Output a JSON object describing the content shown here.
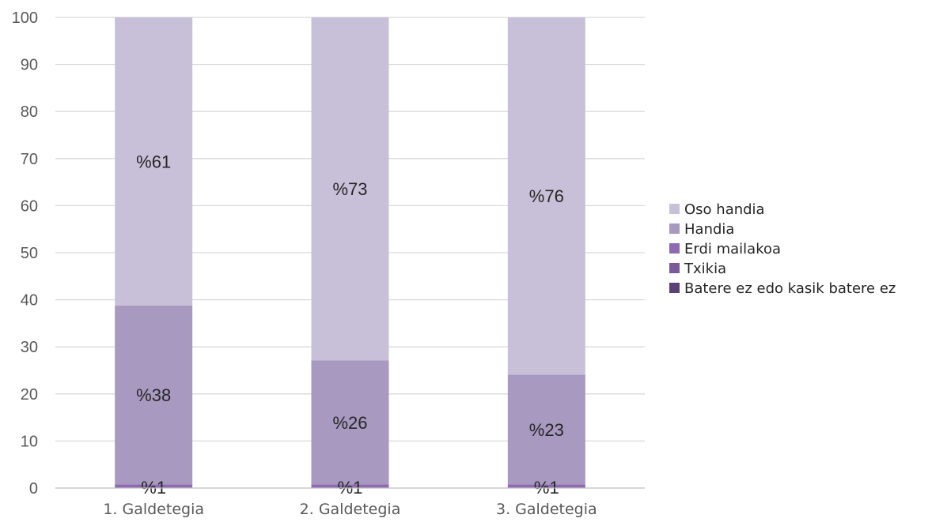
{
  "chart_data": {
    "type": "bar",
    "stacked": true,
    "categories": [
      "1. Galdetegia",
      "2. Galdetegia",
      "3. Galdetegia"
    ],
    "ylim": [
      0,
      100
    ],
    "yticks": [
      0,
      10,
      20,
      30,
      40,
      50,
      60,
      70,
      80,
      90,
      100
    ],
    "grid": true,
    "legend_position": "right",
    "series": [
      {
        "name": "Batere ez edo kasik batere ez",
        "color": "#5b4275",
        "values": [
          0,
          0,
          0
        ],
        "labels": [
          "",
          "",
          ""
        ]
      },
      {
        "name": "Txikia",
        "color": "#7a5a99",
        "values": [
          0,
          0,
          0
        ],
        "labels": [
          "",
          "",
          ""
        ]
      },
      {
        "name": "Erdi mailakoa",
        "color": "#8e6bb0",
        "values": [
          0.8,
          0.8,
          0.8
        ],
        "labels": [
          "%1",
          "%1",
          "%1"
        ]
      },
      {
        "name": "Handia",
        "color": "#a799bf",
        "values": [
          38,
          26.3,
          23.3
        ],
        "labels": [
          "%38",
          "%26",
          "%23"
        ]
      },
      {
        "name": "Oso handia",
        "color": "#c8c0d8",
        "values": [
          61.2,
          72.9,
          75.9
        ],
        "labels": [
          "%61",
          "%73",
          "%76"
        ]
      }
    ],
    "legend_order": [
      "Oso handia",
      "Handia",
      "Erdi mailakoa",
      "Txikia",
      "Batere ez edo kasik batere ez"
    ]
  }
}
